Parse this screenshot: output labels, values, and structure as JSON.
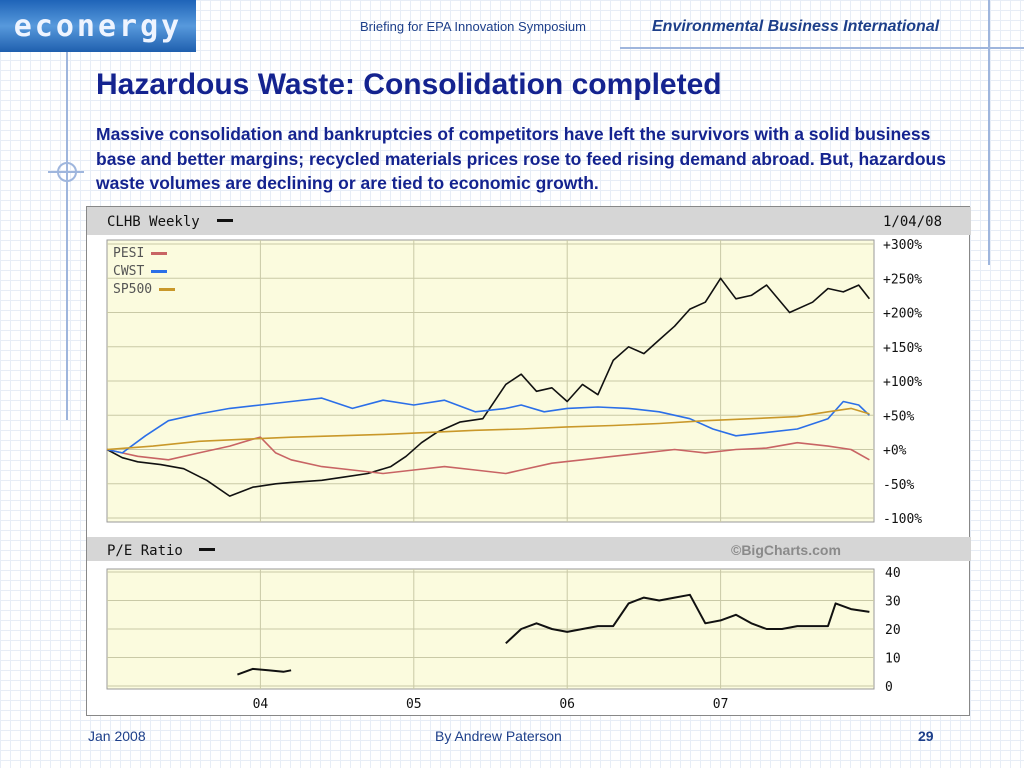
{
  "header": {
    "logo_text": "econergy",
    "briefing": "Briefing for EPA Innovation Symposium",
    "org": "Environmental Business International"
  },
  "slide": {
    "title": "Hazardous Waste:  Consolidation completed",
    "subtitle": "Massive consolidation and bankruptcies of competitors have left the survivors with a solid business base and better margins; recycled materials prices rose to feed rising demand abroad.  But, hazardous waste volumes are declining or are tied to economic growth."
  },
  "colors": {
    "clhb": "#111111",
    "pesi": "#c86464",
    "cwst": "#2b6fe8",
    "sp500": "#c9982a",
    "plot_bg": "#fbfbde",
    "band_bg": "#d6d6d6",
    "grid": "#c9c9a6"
  },
  "chart_data": [
    {
      "type": "line",
      "title": "CLHB Weekly",
      "date": "1/04/08",
      "x_ticks": [
        "04",
        "05",
        "06",
        "07"
      ],
      "y_ticks": [
        "+300%",
        "+250%",
        "+200%",
        "+150%",
        "+100%",
        "+50%",
        "+0%",
        "-50%",
        "-100%"
      ],
      "ylim": [
        -100,
        300
      ],
      "xlim": [
        2003.0,
        2008.0
      ],
      "series": [
        {
          "name": "CLHB",
          "color": "#111111",
          "x": [
            2003.0,
            2003.1,
            2003.2,
            2003.35,
            2003.5,
            2003.65,
            2003.8,
            2003.95,
            2004.1,
            2004.2,
            2004.4,
            2004.55,
            2004.7,
            2004.85,
            2004.95,
            2005.05,
            2005.15,
            2005.3,
            2005.45,
            2005.6,
            2005.7,
            2005.8,
            2005.9,
            2006.0,
            2006.1,
            2006.2,
            2006.3,
            2006.4,
            2006.5,
            2006.6,
            2006.7,
            2006.8,
            2006.9,
            2007.0,
            2007.1,
            2007.2,
            2007.3,
            2007.45,
            2007.6,
            2007.7,
            2007.8,
            2007.9,
            2007.97
          ],
          "y": [
            0,
            -12,
            -18,
            -22,
            -28,
            -45,
            -68,
            -55,
            -50,
            -48,
            -45,
            -40,
            -35,
            -25,
            -10,
            10,
            25,
            40,
            45,
            95,
            110,
            85,
            90,
            70,
            95,
            80,
            130,
            150,
            140,
            160,
            180,
            205,
            215,
            250,
            220,
            225,
            240,
            200,
            215,
            235,
            230,
            240,
            220
          ]
        },
        {
          "name": "PESI",
          "color": "#c86464",
          "x": [
            2003.0,
            2003.2,
            2003.4,
            2003.6,
            2003.8,
            2003.95,
            2004.0,
            2004.1,
            2004.2,
            2004.4,
            2004.6,
            2004.8,
            2005.0,
            2005.2,
            2005.4,
            2005.6,
            2005.7,
            2005.9,
            2006.1,
            2006.3,
            2006.5,
            2006.7,
            2006.9,
            2007.1,
            2007.3,
            2007.5,
            2007.7,
            2007.85,
            2007.97
          ],
          "y": [
            0,
            -10,
            -15,
            -5,
            5,
            15,
            18,
            -5,
            -15,
            -25,
            -30,
            -35,
            -30,
            -25,
            -30,
            -35,
            -30,
            -20,
            -15,
            -10,
            -5,
            0,
            -5,
            0,
            2,
            10,
            5,
            0,
            -15
          ]
        },
        {
          "name": "CWST",
          "color": "#2b6fe8",
          "x": [
            2003.0,
            2003.1,
            2003.25,
            2003.4,
            2003.6,
            2003.8,
            2004.0,
            2004.2,
            2004.4,
            2004.6,
            2004.8,
            2005.0,
            2005.2,
            2005.4,
            2005.6,
            2005.7,
            2005.85,
            2006.0,
            2006.2,
            2006.4,
            2006.6,
            2006.8,
            2006.95,
            2007.1,
            2007.3,
            2007.5,
            2007.7,
            2007.8,
            2007.9,
            2007.97
          ],
          "y": [
            0,
            -5,
            20,
            42,
            52,
            60,
            65,
            70,
            75,
            60,
            72,
            65,
            72,
            55,
            60,
            65,
            55,
            60,
            62,
            60,
            55,
            45,
            30,
            20,
            25,
            30,
            45,
            70,
            65,
            50
          ]
        },
        {
          "name": "SP500",
          "color": "#c9982a",
          "x": [
            2003.0,
            2003.3,
            2003.6,
            2003.9,
            2004.2,
            2004.5,
            2004.8,
            2005.1,
            2005.4,
            2005.7,
            2006.0,
            2006.3,
            2006.6,
            2006.9,
            2007.2,
            2007.5,
            2007.7,
            2007.85,
            2007.97
          ],
          "y": [
            0,
            5,
            12,
            15,
            18,
            20,
            22,
            25,
            28,
            30,
            33,
            35,
            38,
            42,
            45,
            48,
            55,
            60,
            52
          ]
        }
      ]
    },
    {
      "type": "line",
      "title": "P/E Ratio",
      "watermark": "©BigCharts.com",
      "y_ticks": [
        "40",
        "30",
        "20",
        "10",
        "0"
      ],
      "ylim": [
        0,
        40
      ],
      "xlim": [
        2003.0,
        2008.0
      ],
      "series": [
        {
          "name": "P/E Ratio",
          "color": "#111111",
          "x": [
            2003.85,
            2003.95,
            2004.05,
            2004.15,
            2004.2
          ],
          "y": [
            4,
            6,
            5.5,
            5,
            5.5
          ]
        },
        {
          "name": "P/E Ratio",
          "color": "#111111",
          "x": [
            2005.6,
            2005.7,
            2005.8,
            2005.9,
            2006.0,
            2006.1,
            2006.2,
            2006.3,
            2006.4,
            2006.5,
            2006.6,
            2006.7,
            2006.8,
            2006.9,
            2007.0,
            2007.1,
            2007.2,
            2007.3,
            2007.4,
            2007.5,
            2007.6,
            2007.7,
            2007.75,
            2007.85,
            2007.97
          ],
          "y": [
            15,
            20,
            22,
            20,
            19,
            20,
            21,
            21,
            29,
            31,
            30,
            31,
            32,
            22,
            23,
            25,
            22,
            20,
            20,
            21,
            21,
            21,
            29,
            27,
            26
          ]
        }
      ]
    }
  ],
  "footer": {
    "date": "Jan 2008",
    "author": "By Andrew Paterson",
    "page": "29"
  }
}
